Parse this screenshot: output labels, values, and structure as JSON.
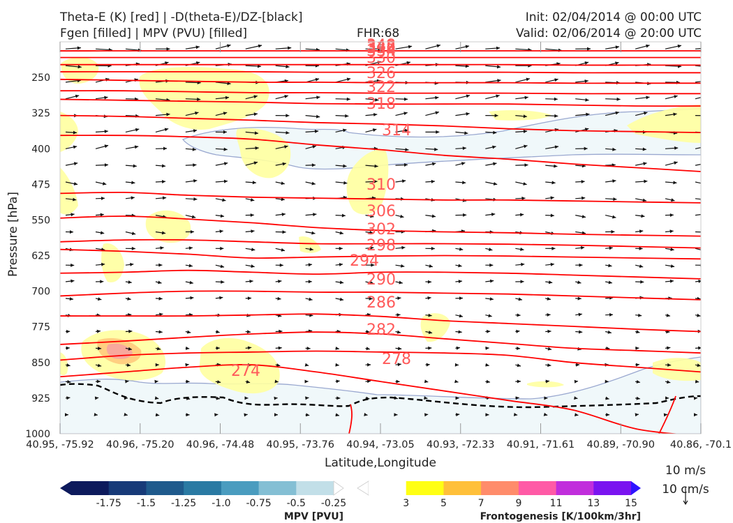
{
  "header": {
    "title_left_1": "Theta-E (K) [red] | -D(theta-E)/DZ-[black]",
    "title_left_2": "Fgen [filled] | MPV (PVU) [filled]",
    "fhr": "FHR:68",
    "init": "Init: 02/04/2014 @ 00:00 UTC",
    "valid": "Valid: 02/06/2014 @ 20:00 UTC"
  },
  "chart_data": {
    "type": "cross-section",
    "xlabel": "Latitude,Longitude",
    "ylabel": "Pressure [hPa]",
    "ylim": [
      1000,
      175
    ],
    "y_scale": "linear, inverted",
    "x_ticks": [
      "40.95, -75.92",
      "40.96, -75.20",
      "40.96, -74.48",
      "40.95, -73.76",
      "40.94, -73.05",
      "40.93, -72.33",
      "40.91, -71.61",
      "40.89, -70.90",
      "40.86, -70.1"
    ],
    "y_ticks": [
      250,
      325,
      400,
      475,
      550,
      625,
      700,
      775,
      850,
      925,
      1000
    ],
    "theta_e_contours": [
      {
        "label": "274",
        "pressures": [
          880,
          870,
          860,
          855,
          870,
          890,
          910,
          930,
          950,
          990,
          1005
        ]
      },
      {
        "label": "278",
        "pressures": [
          845,
          835,
          830,
          828,
          826,
          828,
          830,
          835,
          850,
          860,
          870
        ]
      },
      {
        "label": "282",
        "pressures": [
          812,
          805,
          797,
          790,
          786,
          790,
          800,
          810,
          820,
          825,
          830
        ]
      },
      {
        "label": "286",
        "pressures": [
          752,
          752,
          752,
          750,
          748,
          753,
          762,
          768,
          774,
          780,
          785
        ]
      },
      {
        "label": "290",
        "pressures": [
          710,
          704,
          700,
          700,
          702,
          702,
          704,
          706,
          710,
          714,
          718
        ]
      },
      {
        "label": "294",
        "pressures": [
          662,
          660,
          656,
          660,
          664,
          660,
          660,
          662,
          666,
          670,
          674
        ]
      },
      {
        "label": "298",
        "pressures": [
          612,
          616,
          622,
          630,
          628,
          626,
          625,
          626,
          628,
          630,
          632
        ]
      },
      {
        "label": "302",
        "pressures": [
          596,
          592,
          592,
          596,
          600,
          600,
          600,
          601,
          603,
          606,
          609
        ]
      },
      {
        "label": "306",
        "pressures": [
          546,
          542,
          548,
          556,
          566,
          572,
          575,
          577,
          580,
          582,
          584
        ]
      },
      {
        "label": "310",
        "pressures": [
          494,
          492,
          498,
          502,
          504,
          506,
          508,
          508,
          510,
          512,
          514
        ]
      },
      {
        "label": "314",
        "pressures": [
          372,
          372,
          375,
          380,
          392,
          402,
          414,
          422,
          432,
          440,
          448
        ]
      },
      {
        "label": "318",
        "pressures": [
          330,
          332,
          336,
          340,
          345,
          348,
          352,
          358,
          362,
          364,
          366
        ]
      },
      {
        "label": "322",
        "pressures": [
          296,
          298,
          300,
          302,
          305,
          306,
          306,
          306,
          308,
          310,
          310
        ]
      },
      {
        "label": "326",
        "pressures": [
          278,
          278,
          280,
          282,
          282,
          283,
          283,
          283,
          284,
          284,
          284
        ]
      },
      {
        "label": "330",
        "pressures": [
          254,
          256,
          258,
          260,
          260,
          261,
          261,
          261,
          262,
          262,
          262
        ]
      },
      {
        "label": "334",
        "pressures": [
          238,
          238,
          238,
          238,
          239,
          239,
          239,
          239,
          240,
          240,
          240
        ]
      },
      {
        "label": "338",
        "pressures": [
          223,
          223,
          223,
          223,
          223,
          223,
          223,
          223,
          224,
          224,
          224
        ]
      },
      {
        "label": "342",
        "pressures": [
          208,
          208,
          208,
          208,
          208,
          208,
          208,
          208,
          208,
          208,
          208
        ]
      },
      {
        "label": "348",
        "pressures": [
          194,
          194,
          194,
          194,
          194,
          194,
          194,
          194,
          194,
          194,
          194
        ]
      }
    ],
    "mpv_colorbar": {
      "title": "MPV [PVU]",
      "ticks": [
        "-1.75",
        "-1.5",
        "-1.25",
        "-1.0",
        "-0.75",
        "-0.5",
        "-0.25"
      ],
      "colors": [
        "#0d1a5c",
        "#173a78",
        "#1f5a8c",
        "#2a7aa3",
        "#4a9cbf",
        "#84bfd4",
        "#c2dfe8",
        "#ffffff"
      ]
    },
    "fgen_colorbar": {
      "title": "Frontogenesis [K/100km/3hr]",
      "ticks": [
        "3",
        "5",
        "7",
        "9",
        "11",
        "13",
        "15"
      ],
      "colors": [
        "#ffffff",
        "#ffff14",
        "#ffc03a",
        "#ff8c6b",
        "#ff5aa6",
        "#c12edc",
        "#7a14f0",
        "#2e14ff"
      ]
    },
    "wind_key": {
      "speed": "10 m/s",
      "vertical": "10 cm/s"
    },
    "colors": {
      "theta_e": "#ff0000",
      "theta_e_label": "#ff5a5a",
      "stability": "#000000",
      "wind_arrow": "#111111",
      "mpv_fill": "#f0f8fa",
      "mpv_outline": "#9aa8d0",
      "fgen_fill": "#ffffa0"
    }
  }
}
